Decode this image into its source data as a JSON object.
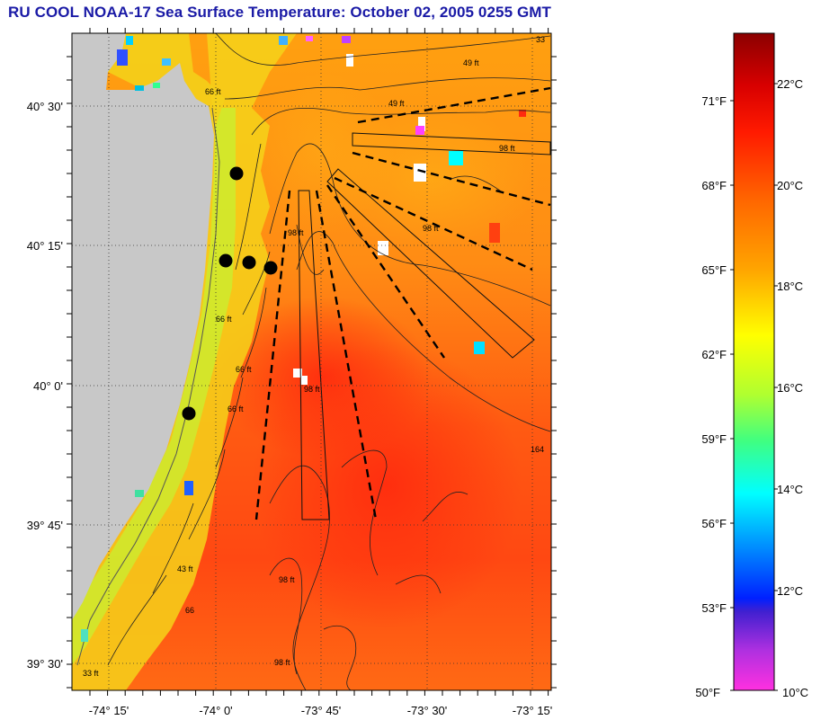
{
  "title": "RU COOL  NOAA-17  Sea Surface Temperature:  October 02, 2005 0255 GMT",
  "map": {
    "lat_ticks": [
      "40° 30'",
      "40° 15'",
      "40° 0'",
      "39° 45'",
      "39° 30'"
    ],
    "lon_ticks": [
      "-74° 15'",
      "-74° 0'",
      "-73° 45'",
      "-73° 30'",
      "-73° 15'"
    ],
    "contour_labels": [
      "33",
      "49 ft",
      "66 ft",
      "49 ft",
      "98 ft",
      "98 ft",
      "98 ft",
      "66 ft",
      "66 ft",
      "66 ft",
      "98 ft",
      "164",
      "43 ft",
      "66",
      "98 ft",
      "98 ft",
      "33 ft"
    ],
    "colors": {
      "land": "#c8c8c8",
      "sea_warm": "#ff8a12",
      "sea_hot": "#ff3a10",
      "coastal": "#f2f21a"
    },
    "stations_count_note": ""
  },
  "colorbar": {
    "fahrenheit_labels": [
      "71°F",
      "68°F",
      "65°F",
      "62°F",
      "59°F",
      "56°F",
      "53°F",
      "50°F"
    ],
    "celsius_labels": [
      "22°C",
      "20°C",
      "18°C",
      "16°C",
      "14°C",
      "12°C",
      "10°C"
    ]
  }
}
